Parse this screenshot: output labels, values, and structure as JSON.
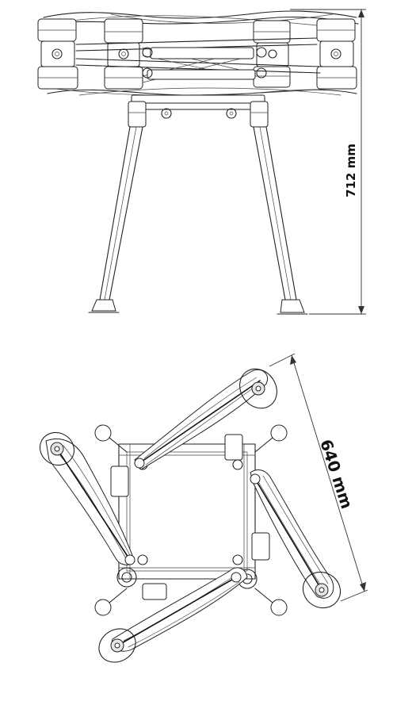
{
  "side_view": {
    "height_label": "712 mm"
  },
  "top_view": {
    "diameter_label": "640 mm"
  }
}
